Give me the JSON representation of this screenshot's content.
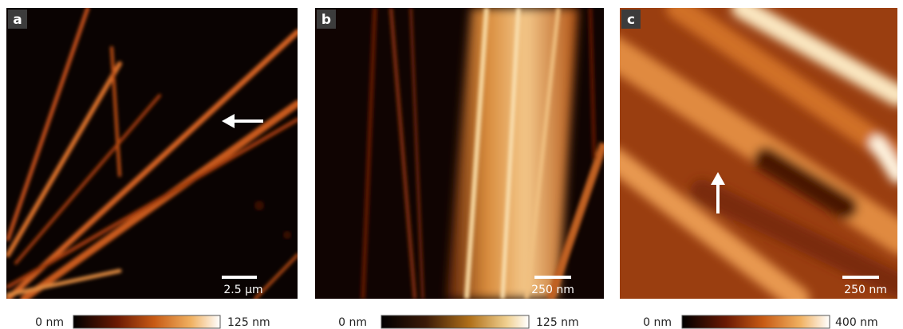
{
  "panels": [
    {
      "label": "a",
      "scale_bar": "2.5 μm",
      "colorbar": {
        "min": "0 nm",
        "max": "125 nm"
      }
    },
    {
      "label": "b",
      "scale_bar": "250 nm",
      "colorbar": {
        "min": "0 nm",
        "max": "125 nm"
      }
    },
    {
      "label": "c",
      "scale_bar": "250 nm",
      "colorbar": {
        "min": "0 nm",
        "max": "400 nm"
      }
    }
  ]
}
